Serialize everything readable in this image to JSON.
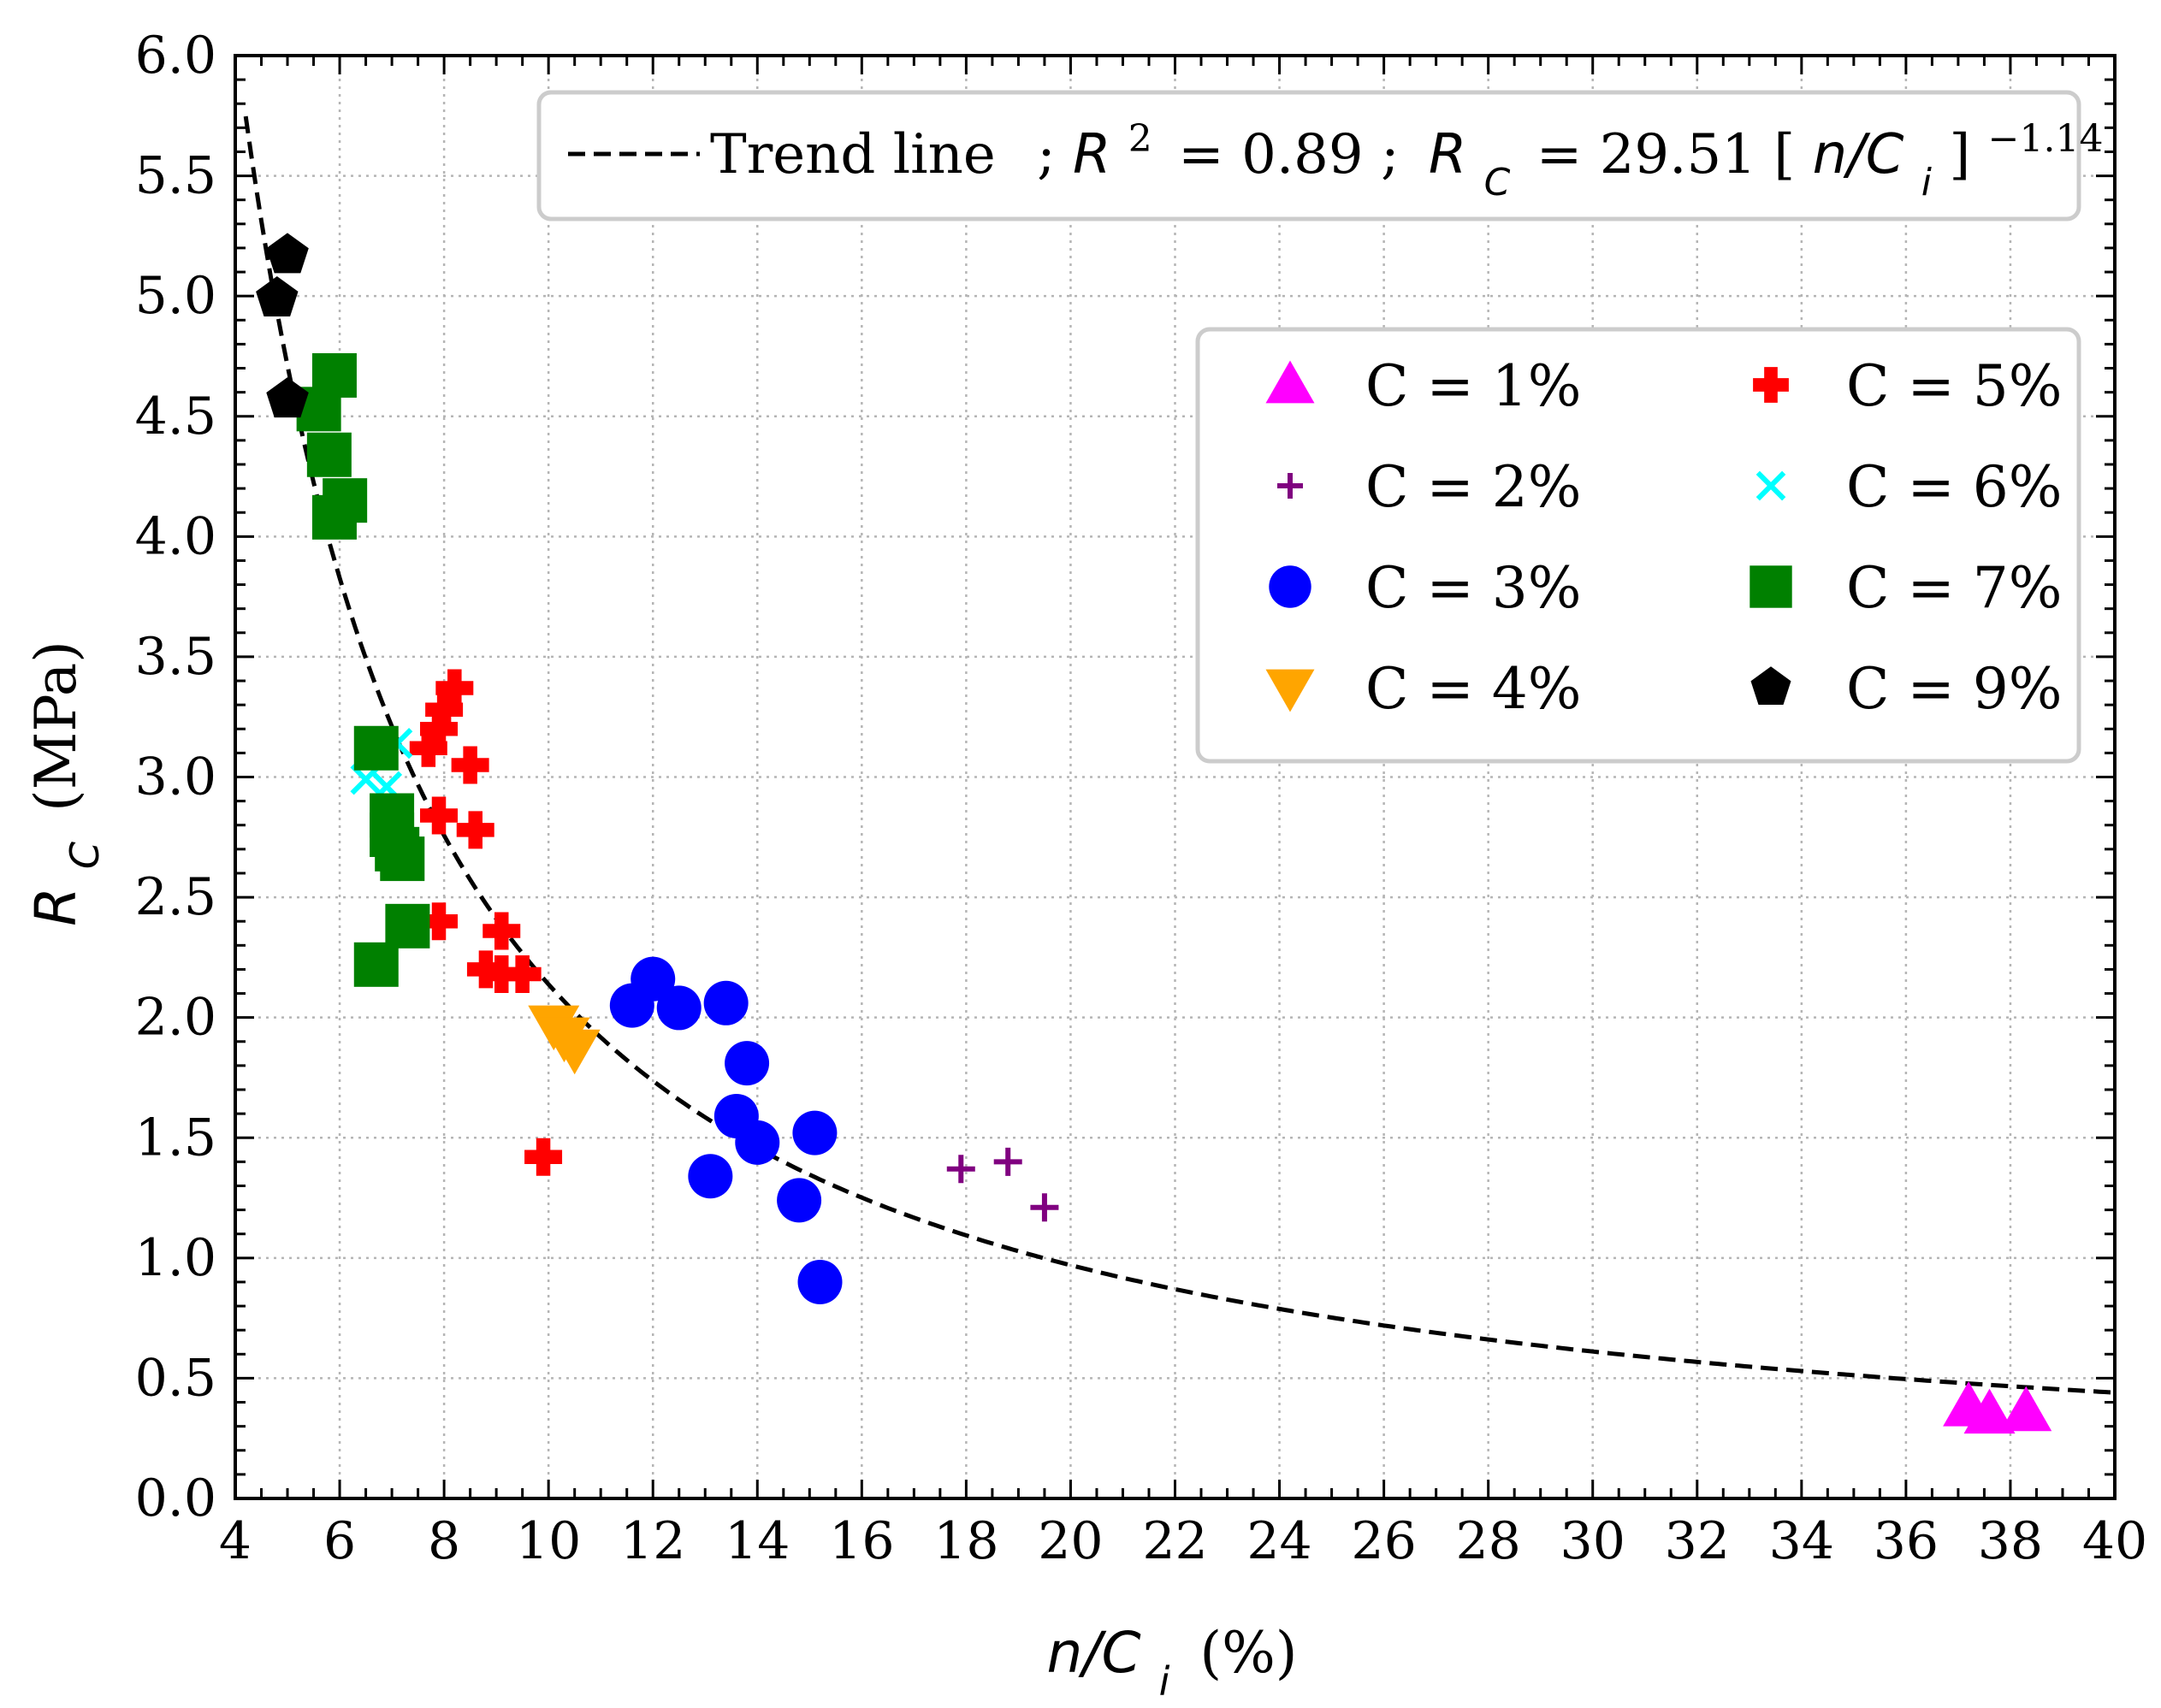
{
  "chart_data": {
    "type": "scatter",
    "xlabel": "n/Ci (%)",
    "xlabel_var": "n/C",
    "xlabel_sub": "i",
    "xlabel_unit": "(%)",
    "ylabel": "RC (MPa)",
    "ylabel_var": "R",
    "ylabel_sub": "C",
    "ylabel_unit": "(MPa)",
    "xlim": [
      4,
      40
    ],
    "ylim": [
      0.0,
      6.0
    ],
    "xticks": [
      4,
      6,
      8,
      10,
      12,
      14,
      16,
      18,
      20,
      22,
      24,
      26,
      28,
      30,
      32,
      34,
      36,
      38,
      40
    ],
    "yticks": [
      "0.0",
      "0.5",
      "1.0",
      "1.5",
      "2.0",
      "2.5",
      "3.0",
      "3.5",
      "4.0",
      "4.5",
      "5.0",
      "5.5",
      "6.0"
    ],
    "grid": true,
    "trend": {
      "label": "Trend line",
      "r2_text": "; R² = 0.89 ;",
      "r2_var": "R",
      "r2_exp": "2",
      "r2_value": "= 0.89 ;",
      "eq_var": "R",
      "eq_sub": "C",
      "eq_coef": "= 29.51 [",
      "eq_inner_var": "n/C",
      "eq_inner_sub": "i",
      "eq_close": "]",
      "eq_exp": "−1.14",
      "a": 29.51,
      "b": -1.14,
      "r2": 0.89,
      "style": "dashed",
      "color": "#000000"
    },
    "legend_position": "upper-right",
    "series": [
      {
        "name": "C = 1%",
        "marker": "triangle-up",
        "color": "#ff00ff",
        "points": [
          [
            37.2,
            0.38
          ],
          [
            37.6,
            0.35
          ],
          [
            38.3,
            0.36
          ]
        ]
      },
      {
        "name": "C = 2%",
        "marker": "plus",
        "color": "#800080",
        "points": [
          [
            17.9,
            1.37
          ],
          [
            18.8,
            1.4
          ],
          [
            19.5,
            1.21
          ]
        ]
      },
      {
        "name": "C = 3%",
        "marker": "circle",
        "color": "#0000ff",
        "points": [
          [
            11.6,
            2.05
          ],
          [
            12.0,
            2.16
          ],
          [
            12.5,
            2.04
          ],
          [
            13.4,
            2.06
          ],
          [
            13.8,
            1.81
          ],
          [
            13.6,
            1.59
          ],
          [
            14.0,
            1.48
          ],
          [
            13.1,
            1.34
          ],
          [
            15.1,
            1.52
          ],
          [
            14.8,
            1.24
          ],
          [
            15.2,
            0.9
          ]
        ]
      },
      {
        "name": "C = 4%",
        "marker": "triangle-down",
        "color": "#ffa500",
        "points": [
          [
            10.1,
            1.97
          ],
          [
            10.3,
            1.92
          ],
          [
            10.5,
            1.87
          ]
        ]
      },
      {
        "name": "C = 5%",
        "marker": "thick-plus",
        "color": "#ff0000",
        "points": [
          [
            8.2,
            3.37
          ],
          [
            8.0,
            3.28
          ],
          [
            7.9,
            3.2
          ],
          [
            7.7,
            3.12
          ],
          [
            8.5,
            3.05
          ],
          [
            7.9,
            2.84
          ],
          [
            8.6,
            2.78
          ],
          [
            7.9,
            2.4
          ],
          [
            9.1,
            2.36
          ],
          [
            8.8,
            2.2
          ],
          [
            9.1,
            2.18
          ],
          [
            9.5,
            2.18
          ],
          [
            9.9,
            1.42
          ]
        ]
      },
      {
        "name": "C = 6%",
        "marker": "x",
        "color": "#00ffff",
        "points": [
          [
            6.5,
            2.99
          ],
          [
            6.9,
            2.96
          ],
          [
            7.1,
            3.14
          ]
        ]
      },
      {
        "name": "C = 7%",
        "marker": "square",
        "color": "#008000",
        "points": [
          [
            5.9,
            4.67
          ],
          [
            5.6,
            4.53
          ],
          [
            5.8,
            4.34
          ],
          [
            6.1,
            4.15
          ],
          [
            5.9,
            4.08
          ],
          [
            6.7,
            3.12
          ],
          [
            7.0,
            2.84
          ],
          [
            7.0,
            2.76
          ],
          [
            7.1,
            2.7
          ],
          [
            7.2,
            2.66
          ],
          [
            7.3,
            2.38
          ],
          [
            6.7,
            2.22
          ]
        ]
      },
      {
        "name": "C = 9%",
        "marker": "pentagon",
        "color": "#000000",
        "points": [
          [
            5.0,
            5.17
          ],
          [
            4.8,
            4.99
          ],
          [
            5.0,
            4.57
          ]
        ]
      }
    ]
  }
}
